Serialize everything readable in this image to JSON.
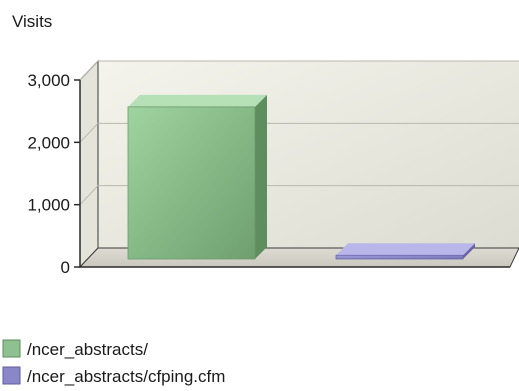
{
  "chart_data": {
    "type": "bar",
    "title": "",
    "xlabel": "",
    "ylabel": "Visits",
    "ylim": [
      0,
      3000
    ],
    "yticks": [
      0,
      1000,
      2000,
      3000
    ],
    "ytick_labels": [
      "0",
      "1,000",
      "2,000",
      "3,000"
    ],
    "grid": true,
    "three_d": true,
    "legend_position": "bottom-left",
    "series": [
      {
        "name": "/ncer_abstracts/",
        "values": [
          2440
        ],
        "color": "#8fc08f"
      },
      {
        "name": "/ncer_abstracts/cfping.cfm",
        "values": [
          60
        ],
        "color": "#8a87c8"
      }
    ]
  }
}
